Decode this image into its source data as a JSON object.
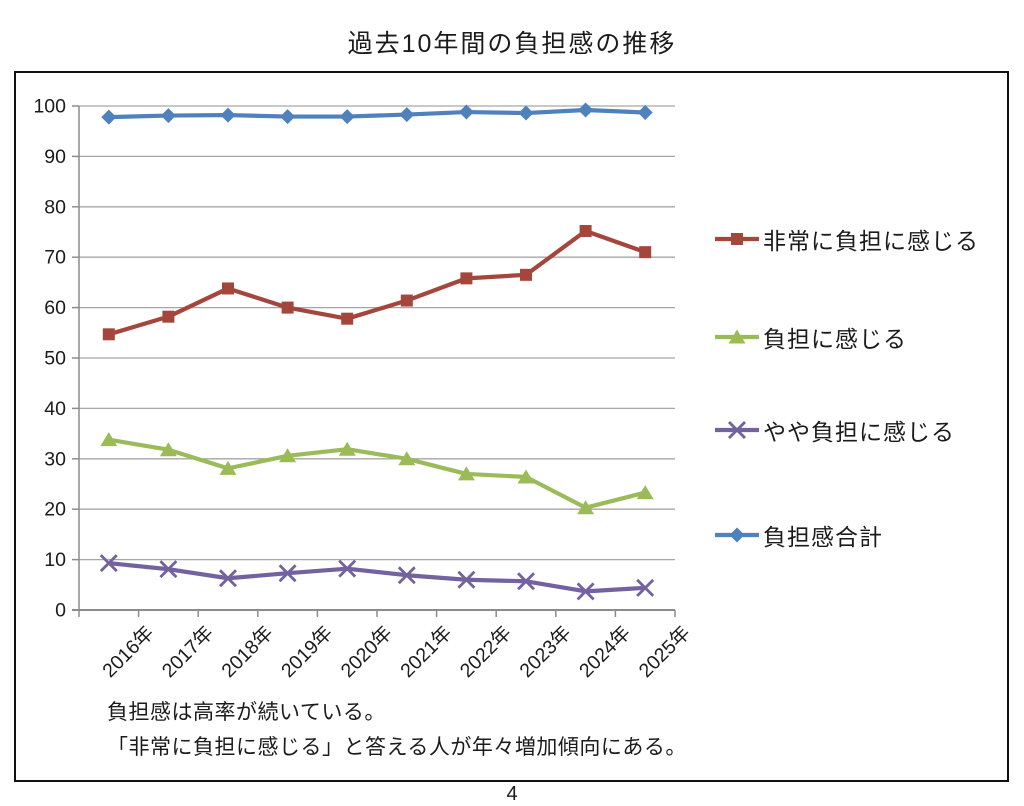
{
  "page": {
    "title": "過去10年間の負担感の推移",
    "page_number": "4"
  },
  "annotation": {
    "line1": "負担感は高率が続いている。",
    "line2": "「非常に負担に感じる」と答える人が年々増加傾向にある。"
  },
  "chart_data": {
    "type": "line",
    "title": "過去10年間の負担感の推移",
    "categories": [
      "2016年",
      "2017年",
      "2018年",
      "2019年",
      "2020年",
      "2021年",
      "2022年",
      "2023年",
      "2024年",
      "2025年"
    ],
    "series": [
      {
        "name": "非常に負担に感じる",
        "color": "#A5463D",
        "marker": "square",
        "values": [
          54.7,
          58.2,
          63.8,
          60.0,
          57.8,
          61.4,
          65.8,
          66.5,
          75.2,
          71.0
        ]
      },
      {
        "name": "負担に感じる",
        "color": "#9BBB59",
        "marker": "triangle",
        "values": [
          33.8,
          31.8,
          28.1,
          30.6,
          31.9,
          30.0,
          27.0,
          26.4,
          20.3,
          23.3
        ]
      },
      {
        "name": "やや負担に感じる",
        "color": "#74619F",
        "marker": "x",
        "values": [
          9.3,
          8.1,
          6.3,
          7.3,
          8.2,
          6.9,
          6.0,
          5.7,
          3.7,
          4.4
        ]
      },
      {
        "name": "負担感合計",
        "color": "#4F81BD",
        "marker": "diamond",
        "values": [
          97.8,
          98.1,
          98.2,
          97.9,
          97.9,
          98.3,
          98.8,
          98.6,
          99.2,
          98.7
        ]
      }
    ],
    "xlabel": "",
    "ylabel": "",
    "ylim": [
      0,
      100
    ],
    "ytick_step": 10,
    "grid": true,
    "legend_position": "right",
    "gridline_color": "#A6A6A6",
    "axis_color": "#8C8C8C",
    "label_color": "#1b1b1b"
  }
}
